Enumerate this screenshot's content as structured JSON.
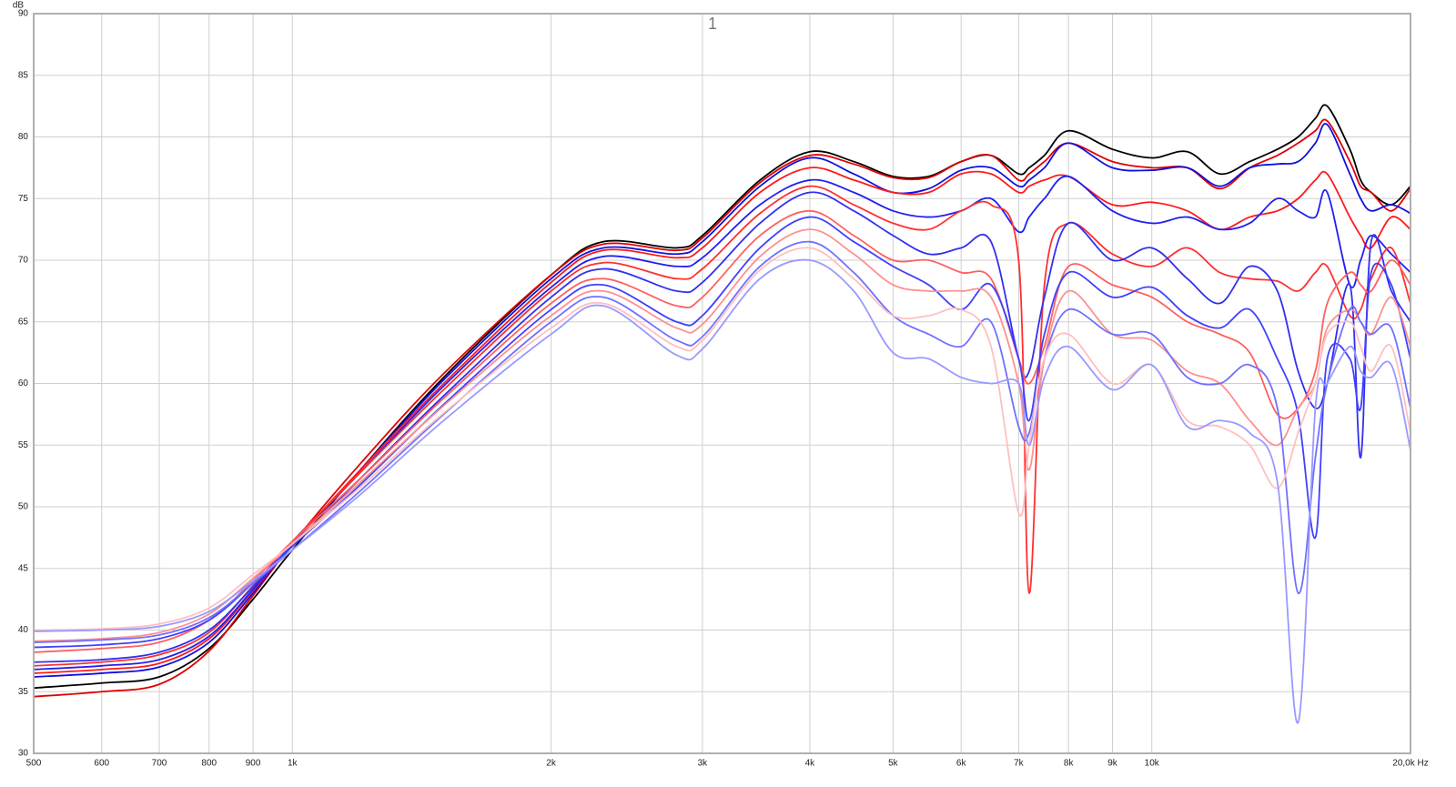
{
  "chart_data": {
    "type": "line",
    "title": "1",
    "y_label": "dB",
    "xscale": "log",
    "grid": true,
    "x": [
      500,
      600,
      700,
      800,
      900,
      1000,
      1200,
      1500,
      2000,
      2300,
      2800,
      3000,
      3500,
      4000,
      4500,
      5000,
      5500,
      6000,
      6500,
      7000,
      7200,
      7500,
      8000,
      9000,
      10000,
      11000,
      12000,
      13000,
      14000,
      14800,
      15500,
      16000,
      17000,
      17500,
      18000,
      19000,
      20000
    ],
    "xlim": [
      500,
      20000
    ],
    "xticks": [
      500,
      600,
      700,
      800,
      900,
      {
        "value": 1000,
        "label": "1k"
      },
      {
        "value": 2000,
        "label": "2k"
      },
      {
        "value": 3000,
        "label": "3k"
      },
      {
        "value": 4000,
        "label": "4k"
      },
      {
        "value": 5000,
        "label": "5k"
      },
      {
        "value": 6000,
        "label": "6k"
      },
      {
        "value": 7000,
        "label": "7k"
      },
      {
        "value": 8000,
        "label": "8k"
      },
      {
        "value": 9000,
        "label": "9k"
      },
      {
        "value": 10000,
        "label": "10k"
      },
      {
        "value": 20000,
        "label": "20,0k Hz"
      }
    ],
    "ylim": [
      30,
      90
    ],
    "yticks": [
      30,
      35,
      40,
      45,
      50,
      55,
      60,
      65,
      70,
      75,
      80,
      85,
      90
    ],
    "series": [
      {
        "color": "#000000",
        "values": [
          35.3,
          35.7,
          36.2,
          38.5,
          42.5,
          46.5,
          53,
          60.5,
          68.8,
          71.5,
          71,
          72,
          76.5,
          78.8,
          78,
          76.8,
          76.8,
          78,
          78.5,
          77,
          77.5,
          78.5,
          80.5,
          79,
          78.3,
          78.8,
          77,
          78,
          79,
          80,
          81.5,
          82.5,
          79,
          76.5,
          75.5,
          74.5,
          76
        ]
      },
      {
        "color": "#e00000",
        "values": [
          34.6,
          35,
          35.6,
          38.3,
          42.8,
          47,
          53.5,
          60.8,
          68.8,
          71.3,
          70.8,
          71.8,
          76.3,
          78.5,
          77.8,
          76.7,
          76.7,
          78,
          78.5,
          76.5,
          77,
          78,
          79.5,
          78,
          77.5,
          77.5,
          75.8,
          77.5,
          78.5,
          79.5,
          80.5,
          81.3,
          78,
          76,
          75.5,
          74,
          75.8
        ]
      },
      {
        "color": "#1010e0",
        "values": [
          36.2,
          36.5,
          37,
          39,
          43,
          47,
          53,
          60.3,
          68.5,
          71,
          70.5,
          71.5,
          76,
          78.3,
          77,
          75.5,
          75.8,
          77.3,
          77.5,
          76,
          76.5,
          77.5,
          79.5,
          77.5,
          77.3,
          77.5,
          76,
          77.5,
          77.8,
          78,
          79.5,
          81,
          77,
          75,
          74,
          74.5,
          73.8
        ]
      },
      {
        "color": "#ff1a1a",
        "values": [
          36.5,
          36.8,
          37.3,
          39.3,
          43.2,
          47,
          53,
          60,
          68.2,
          70.8,
          70.2,
          71,
          75.5,
          77.5,
          76.5,
          75.5,
          75.5,
          77,
          77,
          75.5,
          76,
          76.5,
          76.8,
          74.5,
          74.7,
          74,
          72.5,
          73.5,
          74,
          75,
          76.5,
          77,
          73.5,
          72,
          71,
          73.5,
          72.5
        ]
      },
      {
        "color": "#2020f0",
        "values": [
          36.8,
          37.1,
          37.6,
          39.5,
          43.3,
          47,
          52.8,
          59.8,
          67.8,
          70.3,
          69.5,
          70.2,
          74.5,
          76.5,
          75.5,
          74,
          73.5,
          74,
          75,
          72.3,
          73.5,
          75,
          76.8,
          74,
          73,
          73.5,
          72.5,
          73,
          75,
          74,
          73.5,
          75.5,
          68,
          70,
          72,
          70.5,
          69
        ]
      },
      {
        "color": "#ff3030",
        "values": [
          37.1,
          37.4,
          38,
          39.8,
          43.6,
          47.2,
          52.8,
          59.5,
          67.5,
          69.8,
          68.5,
          69.3,
          73.8,
          76,
          74.5,
          73,
          72.5,
          74,
          74.5,
          70,
          43,
          68,
          73,
          70.5,
          69.5,
          71,
          69,
          68.5,
          68.3,
          67.5,
          69,
          69.5,
          65.5,
          66,
          68.5,
          71,
          66.5
        ]
      },
      {
        "color": "#3030f0",
        "values": [
          37.4,
          37.6,
          38.2,
          40,
          43.5,
          46.8,
          52.3,
          59,
          67,
          69.3,
          67.5,
          68.2,
          73,
          75.5,
          74,
          72,
          70.5,
          71,
          71.5,
          62,
          61,
          67,
          73,
          70,
          71,
          68.5,
          66.5,
          69.5,
          67.5,
          61,
          58,
          60,
          68,
          54,
          71.5,
          67.5,
          65
        ]
      },
      {
        "color": "#ff6060",
        "values": [
          38.2,
          38.5,
          39,
          40.8,
          44,
          47.2,
          52.3,
          58.8,
          66.5,
          68.5,
          66.3,
          67,
          72,
          74,
          72,
          70,
          70,
          69,
          68.5,
          62,
          60,
          63,
          69.5,
          68,
          67,
          65,
          64,
          62.5,
          57.5,
          58,
          61,
          66.5,
          69,
          68,
          67.5,
          70,
          68
        ]
      },
      {
        "color": "#4040ff",
        "values": [
          38.6,
          38.8,
          39.3,
          40.8,
          43.8,
          46.8,
          51.8,
          58.3,
          66,
          68,
          65,
          65.5,
          71,
          73.5,
          71.5,
          69.5,
          68,
          66,
          68,
          62,
          57,
          64,
          69,
          67,
          67.8,
          65.5,
          64.5,
          66,
          62,
          57.5,
          47.5,
          62,
          62,
          58,
          69,
          68,
          62
        ]
      },
      {
        "color": "#ff9090",
        "values": [
          39.1,
          39.3,
          39.8,
          41.3,
          44.2,
          47,
          52,
          58.2,
          65.5,
          67.5,
          64.5,
          64.8,
          70.3,
          72.5,
          70.5,
          68,
          67.5,
          67.5,
          67,
          60,
          53,
          62,
          67.5,
          64,
          63.5,
          61,
          60,
          57,
          55,
          58,
          60,
          64.5,
          66,
          65,
          64,
          67,
          63
        ]
      },
      {
        "color": "#7070ff",
        "values": [
          39,
          39.2,
          39.6,
          41,
          43.8,
          46.5,
          51.3,
          57.5,
          65,
          67,
          63.5,
          63.8,
          69.5,
          71.5,
          69,
          65.5,
          64,
          63,
          65,
          56.5,
          56,
          62,
          66,
          64,
          64,
          60.5,
          60,
          61.5,
          58,
          43,
          54,
          60,
          66,
          65,
          64,
          64.5,
          58
        ]
      },
      {
        "color": "#ffc0c0",
        "values": [
          40,
          40.1,
          40.5,
          41.8,
          44.5,
          47,
          51.6,
          57.6,
          64.5,
          66.5,
          63,
          63.5,
          69.2,
          71,
          68.5,
          65.5,
          65.5,
          66,
          63,
          49.5,
          55,
          62,
          64,
          60,
          61.5,
          57,
          56.5,
          55,
          51.5,
          56,
          60,
          64,
          65,
          63,
          61,
          63,
          56
        ]
      },
      {
        "color": "#9999ff",
        "values": [
          39.9,
          40,
          40.3,
          41.5,
          44,
          46.5,
          51,
          57,
          64,
          66.3,
          62.3,
          62.8,
          68.5,
          70,
          67.5,
          62.5,
          62,
          60.5,
          60,
          60,
          55,
          60.5,
          63,
          59.5,
          61.5,
          56.5,
          57,
          56,
          52,
          32.5,
          58,
          60,
          63,
          61,
          60.5,
          61.5,
          54.6
        ]
      }
    ]
  }
}
